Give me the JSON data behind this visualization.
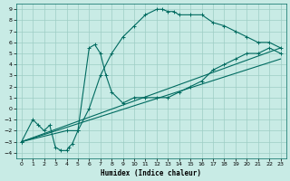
{
  "xlabel": "Humidex (Indice chaleur)",
  "xlim": [
    -0.5,
    23.5
  ],
  "ylim": [
    -4.5,
    9.5
  ],
  "xticks": [
    0,
    1,
    2,
    3,
    4,
    5,
    6,
    7,
    8,
    9,
    10,
    11,
    12,
    13,
    14,
    15,
    16,
    17,
    18,
    19,
    20,
    21,
    22,
    23
  ],
  "yticks": [
    -4,
    -3,
    -2,
    -1,
    0,
    1,
    2,
    3,
    4,
    5,
    6,
    7,
    8,
    9
  ],
  "bg_color": "#c8ebe5",
  "grid_color": "#9ecdc5",
  "line_color": "#006b60",
  "curve1_x": [
    0,
    1,
    1.5,
    2,
    2.5,
    3,
    3.5,
    4,
    4.2,
    4.5,
    5,
    6,
    7,
    8,
    9,
    10,
    11,
    12,
    12.5,
    13,
    13.5,
    14,
    15,
    16,
    17,
    18,
    19,
    20,
    21,
    22,
    23
  ],
  "curve1_y": [
    -3,
    -1,
    -1.5,
    -2,
    -1.5,
    -3.5,
    -3.8,
    -3.8,
    -3.5,
    -3.2,
    -2,
    0,
    3,
    5,
    6.5,
    7.5,
    8.5,
    9,
    9,
    8.8,
    8.8,
    8.5,
    8.5,
    8.5,
    7.8,
    7.5,
    7,
    6.5,
    6,
    6,
    5.5
  ],
  "curve2_x": [
    0,
    4,
    5,
    6,
    6.5,
    7,
    7.5,
    8,
    9,
    10,
    11,
    12,
    13,
    14,
    15,
    16,
    17,
    18,
    19,
    20,
    21,
    22,
    23
  ],
  "curve2_y": [
    -3,
    -2,
    -2,
    5.5,
    5.8,
    5,
    3,
    1.5,
    0.5,
    1,
    1,
    1,
    1,
    1.5,
    2,
    2.5,
    3.5,
    4,
    4.5,
    5,
    5,
    5.5,
    5
  ],
  "curve3_x": [
    0,
    23
  ],
  "curve3_y": [
    -3,
    5.5
  ],
  "curve4_x": [
    0,
    23
  ],
  "curve4_y": [
    -3,
    4.5
  ],
  "figsize": [
    3.2,
    2.0
  ],
  "dpi": 100
}
